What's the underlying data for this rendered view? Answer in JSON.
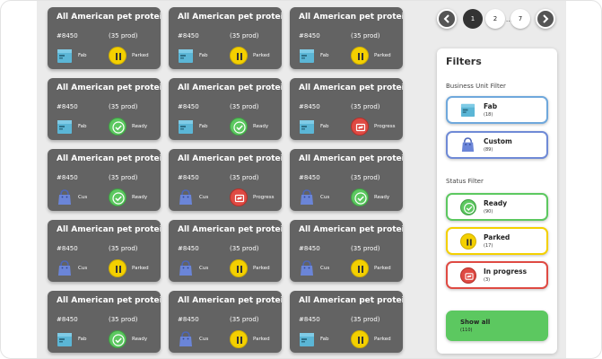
{
  "cards": [
    {
      "title": "All American pet protein",
      "code": "#8450",
      "count": "(35 prod)",
      "bu": "Fab",
      "bu_icon": "box-icon",
      "status": "Parked",
      "status_type": "parked"
    },
    {
      "title": "All American pet protein",
      "code": "#8450",
      "count": "(35 prod)",
      "bu": "Fab",
      "bu_icon": "box-icon",
      "status": "Parked",
      "status_type": "parked"
    },
    {
      "title": "All American pet protein",
      "code": "#8450",
      "count": "(35 prod)",
      "bu": "Fab",
      "bu_icon": "box-icon",
      "status": "Parked",
      "status_type": "parked"
    },
    {
      "title": "All American pet protein",
      "code": "#8450",
      "count": "(35 prod)",
      "bu": "Fab",
      "bu_icon": "box-icon",
      "status": "Ready",
      "status_type": "ready"
    },
    {
      "title": "All American pet protein",
      "code": "#8450",
      "count": "(35 prod)",
      "bu": "Fab",
      "bu_icon": "box-icon",
      "status": "Ready",
      "status_type": "ready"
    },
    {
      "title": "All American pet protein",
      "code": "#8450",
      "count": "(35 prod)",
      "bu": "Fab",
      "bu_icon": "box-icon",
      "status": "Progress",
      "status_type": "progress"
    },
    {
      "title": "All American pet protein",
      "code": "#8450",
      "count": "(35 prod)",
      "bu": "Cus",
      "bu_icon": "bag-icon",
      "status": "Ready",
      "status_type": "ready"
    },
    {
      "title": "All American pet protein",
      "code": "#8450",
      "count": "(35 prod)",
      "bu": "Cus",
      "bu_icon": "bag-icon",
      "status": "Progress",
      "status_type": "progress"
    },
    {
      "title": "All American pet protein",
      "code": "#8450",
      "count": "(35 prod)",
      "bu": "Cus",
      "bu_icon": "bag-icon",
      "status": "Ready",
      "status_type": "ready"
    },
    {
      "title": "All American pet protein",
      "code": "#8450",
      "count": "(35 prod)",
      "bu": "Cus",
      "bu_icon": "bag-icon",
      "status": "Parked",
      "status_type": "parked"
    },
    {
      "title": "All American pet protein",
      "code": "#8450",
      "count": "(35 prod)",
      "bu": "Cus",
      "bu_icon": "bag-icon",
      "status": "Parked",
      "status_type": "parked"
    },
    {
      "title": "All American pet protein",
      "code": "#8450",
      "count": "(35 prod)",
      "bu": "Cus",
      "bu_icon": "bag-icon",
      "status": "Parked",
      "status_type": "parked"
    },
    {
      "title": "All American pet protein",
      "code": "#8450",
      "count": "(35 prod)",
      "bu": "Fab",
      "bu_icon": "box-icon",
      "status": "Ready",
      "status_type": "ready"
    },
    {
      "title": "All American pet protein",
      "code": "#8450",
      "count": "(35 prod)",
      "bu": "Cus",
      "bu_icon": "bag-icon",
      "status": "Parked",
      "status_type": "parked"
    },
    {
      "title": "All American pet protein",
      "code": "#8450",
      "count": "(35 prod)",
      "bu": "Fab",
      "bu_icon": "box-icon",
      "status": "Parked",
      "status_type": "parked"
    }
  ],
  "pagination": {
    "pages": [
      "1",
      "2",
      "7"
    ],
    "current": "1",
    "ellipsis": "..."
  },
  "filters": {
    "title": "Filters",
    "business_unit_label": "Business Unit Filter",
    "business_units": [
      {
        "name": "Fab",
        "count": "(18)",
        "icon": "box-icon",
        "border": "#6fa8dc"
      },
      {
        "name": "Custom",
        "count": "(89)",
        "icon": "bag-icon",
        "border": "#6f8ad6"
      }
    ],
    "status_label": "Status Filter",
    "statuses": [
      {
        "name": "Ready",
        "count": "(90)",
        "type": "ready",
        "border": "#5cc860"
      },
      {
        "name": "Parked",
        "count": "(17)",
        "type": "parked",
        "border": "#f4d000"
      },
      {
        "name": "In progress",
        "count": "(3)",
        "type": "progress",
        "border": "#df4a43"
      }
    ],
    "show_all": {
      "label": "Show all",
      "count": "(110)"
    }
  },
  "colors": {
    "card_bg": "#636363",
    "ready": "#5cc860",
    "parked": "#f4d000",
    "progress": "#df4a43",
    "box": "#5bb6d6",
    "bag": "#6b85d8"
  }
}
